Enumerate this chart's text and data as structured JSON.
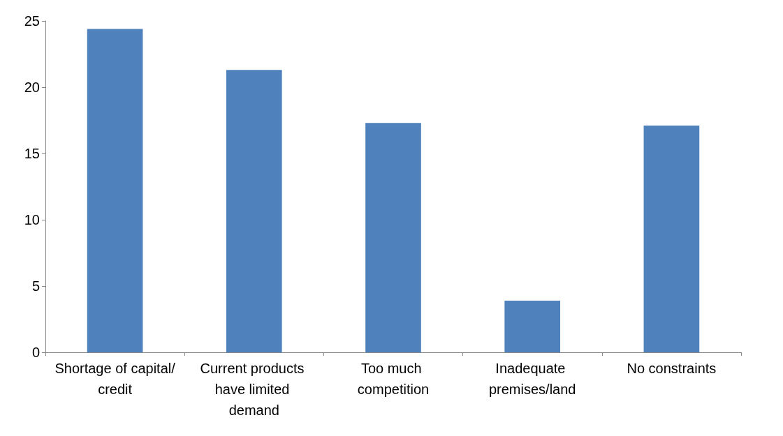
{
  "chart_data": {
    "type": "bar",
    "categories": [
      "Shortage of capital/credit",
      "Current products have limited demand",
      "Too much competition",
      "Inadequate premises/land",
      "No constraints"
    ],
    "values": [
      24.4,
      21.3,
      17.3,
      3.9,
      17.1
    ],
    "color": "#4f81bd",
    "ylim": [
      0,
      25
    ],
    "yticks": [
      0,
      5,
      10,
      15,
      20,
      25
    ],
    "grid": false
  }
}
